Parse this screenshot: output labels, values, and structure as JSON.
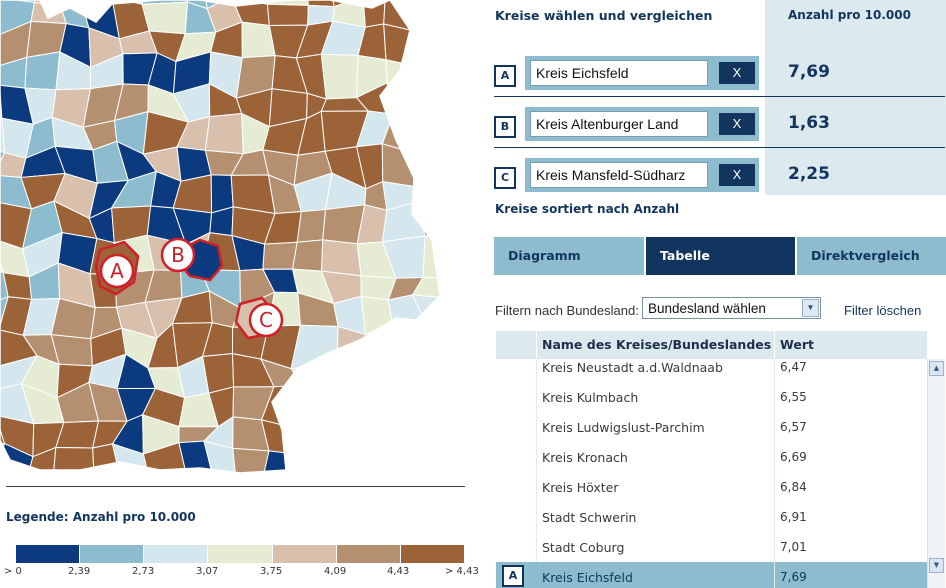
{
  "map": {
    "markers": [
      {
        "letter": "A",
        "region": "Kreis Eichsfeld"
      },
      {
        "letter": "B",
        "region": "Kreis Altenburger Land"
      },
      {
        "letter": "C",
        "region": "Kreis Mansfeld-Südharz"
      }
    ],
    "colors": {
      "c1": "#0b3a7e",
      "c2": "#8cbccd",
      "c3": "#d4e6ee",
      "c4": "#e6ecd4",
      "c5": "#d9c0ad",
      "c6": "#b59070",
      "c7": "#9c6238",
      "border": "#ffffff",
      "highlight": "#d0202a"
    }
  },
  "legend": {
    "title": "Legende: Anzahl pro 10.000",
    "colors": [
      "#0b3a7e",
      "#8cbccd",
      "#d4e6ee",
      "#e6ecd4",
      "#d9c0ad",
      "#b59070",
      "#9c6238"
    ],
    "ticks": [
      "> 0",
      "2,39",
      "2,73",
      "3,07",
      "3,75",
      "4,09",
      "4,43",
      "> 4,43"
    ]
  },
  "compare": {
    "title": "Kreise wählen und vergleichen",
    "value_header": "Anzahl pro 10.000",
    "remove_label": "X",
    "rows": [
      {
        "letter": "A",
        "name": "Kreis Eichsfeld",
        "value": "7,69"
      },
      {
        "letter": "B",
        "name": "Kreis Altenburger Land",
        "value": "1,63"
      },
      {
        "letter": "C",
        "name": "Kreis Mansfeld-Südharz",
        "value": "2,25"
      }
    ]
  },
  "sorted_title": "Kreise sortiert nach Anzahl",
  "tabs": [
    {
      "label": "Diagramm",
      "active": false
    },
    {
      "label": "Tabelle",
      "active": true
    },
    {
      "label": "Direktvergleich",
      "active": false
    }
  ],
  "filter": {
    "label": "Filtern nach Bundesland:",
    "selected": "Bundesland wählen",
    "clear_label": "Filter löschen"
  },
  "table": {
    "col_name": "Name des Kreises/Bundeslandes",
    "col_value": "Wert",
    "rows": [
      {
        "name": "Kreis Neustadt a.d.Waldnaab",
        "value": "6,47",
        "letter": ""
      },
      {
        "name": "Kreis Kulmbach",
        "value": "6,55",
        "letter": ""
      },
      {
        "name": "Kreis Ludwigslust-Parchim",
        "value": "6,57",
        "letter": ""
      },
      {
        "name": "Kreis Kronach",
        "value": "6,69",
        "letter": ""
      },
      {
        "name": "Kreis Höxter",
        "value": "6,84",
        "letter": ""
      },
      {
        "name": "Stadt Schwerin",
        "value": "6,91",
        "letter": ""
      },
      {
        "name": "Stadt Coburg",
        "value": "7,01",
        "letter": ""
      },
      {
        "name": "Kreis Eichsfeld",
        "value": "7,69",
        "letter": "A"
      }
    ]
  }
}
